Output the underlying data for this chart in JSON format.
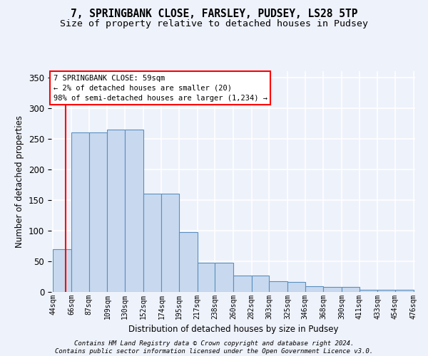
{
  "title": "7, SPRINGBANK CLOSE, FARSLEY, PUDSEY, LS28 5TP",
  "subtitle": "Size of property relative to detached houses in Pudsey",
  "xlabel": "Distribution of detached houses by size in Pudsey",
  "ylabel": "Number of detached properties",
  "bar_left_edges": [
    44,
    66,
    87,
    109,
    130,
    152,
    174,
    195,
    217,
    238,
    260,
    282,
    303,
    325,
    346,
    368,
    390,
    411,
    433,
    454
  ],
  "bar_widths": [
    22,
    21,
    22,
    21,
    22,
    22,
    21,
    22,
    21,
    22,
    22,
    21,
    22,
    21,
    22,
    22,
    21,
    22,
    21,
    22
  ],
  "bar_heights": [
    70,
    260,
    260,
    265,
    265,
    160,
    160,
    98,
    48,
    48,
    27,
    27,
    17,
    16,
    9,
    8,
    8,
    4,
    3,
    3
  ],
  "tick_labels": [
    "44sqm",
    "66sqm",
    "87sqm",
    "109sqm",
    "130sqm",
    "152sqm",
    "174sqm",
    "195sqm",
    "217sqm",
    "238sqm",
    "260sqm",
    "282sqm",
    "303sqm",
    "325sqm",
    "346sqm",
    "368sqm",
    "390sqm",
    "411sqm",
    "433sqm",
    "454sqm",
    "476sqm"
  ],
  "bar_color": "#c8d9ef",
  "bar_edge_color": "#5a8fc0",
  "bar_edge_width": 0.8,
  "red_line_x": 59,
  "ylim": [
    0,
    360
  ],
  "yticks": [
    0,
    50,
    100,
    150,
    200,
    250,
    300,
    350
  ],
  "annotation_box_text": "7 SPRINGBANK CLOSE: 59sqm\n← 2% of detached houses are smaller (20)\n98% of semi-detached houses are larger (1,234) →",
  "footer_line1": "Contains HM Land Registry data © Crown copyright and database right 2024.",
  "footer_line2": "Contains public sector information licensed under the Open Government Licence v3.0.",
  "background_color": "#eef2fb",
  "grid_color": "#ffffff",
  "title_fontsize": 10.5,
  "subtitle_fontsize": 9.5,
  "ylabel_fontsize": 8.5,
  "xlabel_fontsize": 8.5,
  "ytick_fontsize": 8.5,
  "xtick_fontsize": 7,
  "footer_fontsize": 6.5,
  "annot_fontsize": 7.5
}
